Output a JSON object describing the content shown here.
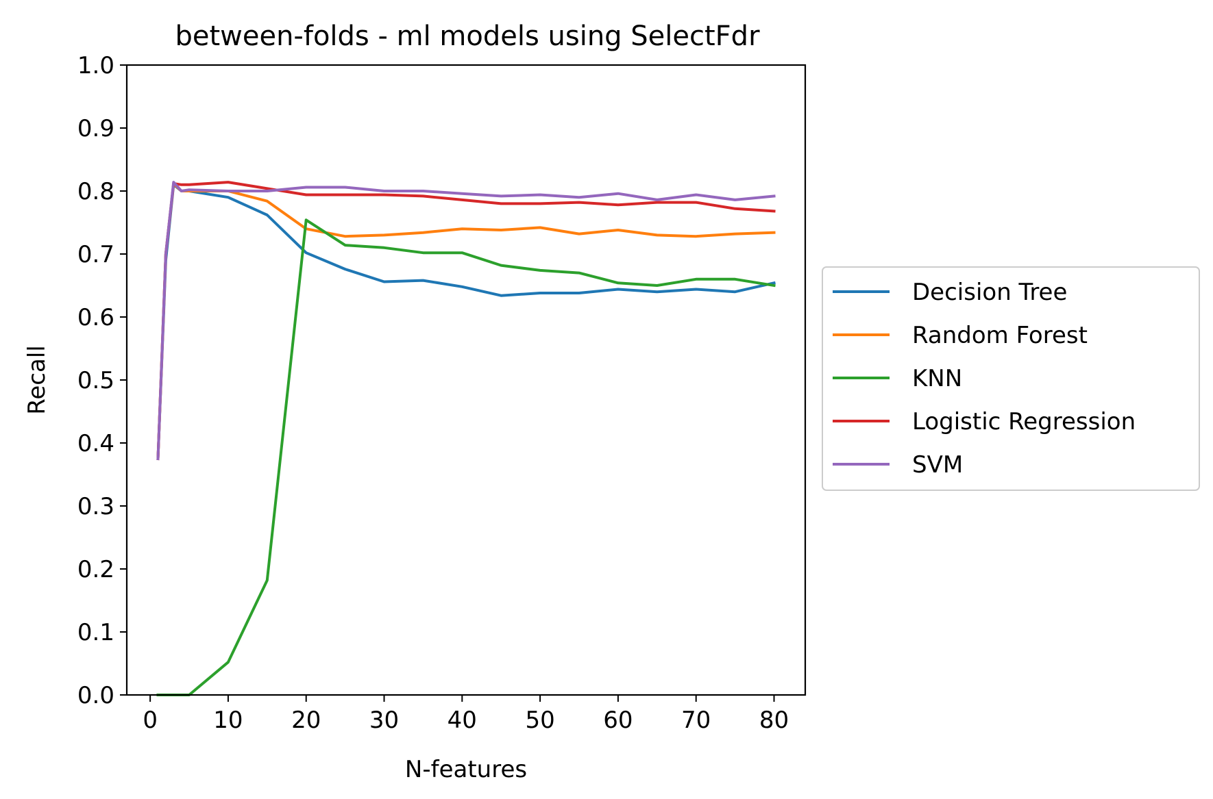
{
  "chart_data": {
    "type": "line",
    "title": "between-folds - ml models using SelectFdr",
    "xlabel": "N-features",
    "ylabel": "Recall",
    "xlim": [
      -3,
      84
    ],
    "ylim": [
      0.0,
      1.0
    ],
    "xticks": [
      0,
      10,
      20,
      30,
      40,
      50,
      60,
      70,
      80
    ],
    "yticks": [
      0.0,
      0.1,
      0.2,
      0.3,
      0.4,
      0.5,
      0.6,
      0.7,
      0.8,
      0.9,
      1.0
    ],
    "grid": false,
    "legend_position": "center-right outside",
    "x": [
      1,
      2,
      3,
      4,
      5,
      10,
      15,
      20,
      25,
      30,
      35,
      40,
      45,
      50,
      55,
      60,
      65,
      70,
      75,
      80
    ],
    "series": [
      {
        "name": "Decision Tree",
        "color": "#1f77b4",
        "values": [
          0.375,
          0.69,
          0.81,
          0.8,
          0.8,
          0.79,
          0.762,
          0.702,
          0.676,
          0.656,
          0.658,
          0.648,
          0.634,
          0.638,
          0.638,
          0.644,
          0.64,
          0.644,
          0.64,
          0.654
        ]
      },
      {
        "name": "Random Forest",
        "color": "#ff7f0e",
        "values": [
          0.375,
          0.7,
          0.812,
          0.8,
          0.8,
          0.8,
          0.784,
          0.74,
          0.728,
          0.73,
          0.734,
          0.74,
          0.738,
          0.742,
          0.732,
          0.738,
          0.73,
          0.728,
          0.732,
          0.734
        ]
      },
      {
        "name": "KNN",
        "color": "#2ca02c",
        "values": [
          0.0,
          0.0,
          0.0,
          0.0,
          0.0,
          0.052,
          0.182,
          0.754,
          0.714,
          0.71,
          0.702,
          0.702,
          0.682,
          0.674,
          0.67,
          0.654,
          0.65,
          0.66,
          0.66,
          0.65
        ]
      },
      {
        "name": "Logistic Regression",
        "color": "#d62728",
        "values": [
          0.375,
          0.7,
          0.812,
          0.81,
          0.81,
          0.814,
          0.804,
          0.794,
          0.794,
          0.794,
          0.792,
          0.786,
          0.78,
          0.78,
          0.782,
          0.778,
          0.782,
          0.782,
          0.772,
          0.768
        ]
      },
      {
        "name": "SVM",
        "color": "#9467bd",
        "values": [
          0.375,
          0.7,
          0.814,
          0.8,
          0.802,
          0.8,
          0.8,
          0.806,
          0.806,
          0.8,
          0.8,
          0.796,
          0.792,
          0.794,
          0.79,
          0.796,
          0.786,
          0.794,
          0.786,
          0.792
        ]
      }
    ]
  }
}
